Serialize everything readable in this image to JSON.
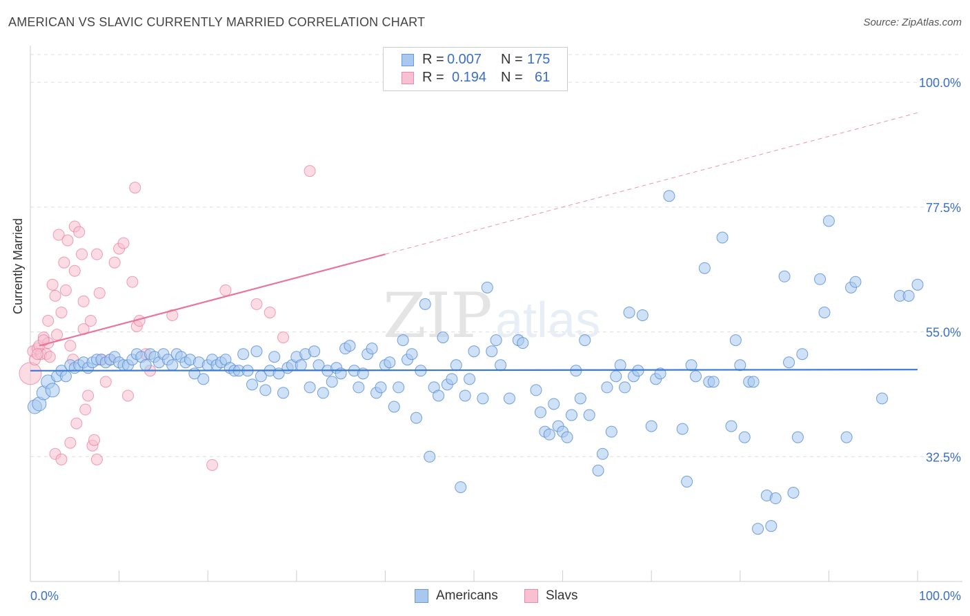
{
  "title": "AMERICAN VS SLAVIC CURRENTLY MARRIED CORRELATION CHART",
  "source": "Source: ZipAtlas.com",
  "watermark": {
    "zip": "ZIP",
    "atlas": "atlas"
  },
  "legend": {
    "rows": [
      {
        "r_label": "R =",
        "r_value": "0.007",
        "n_label": "N =",
        "n_value": "175",
        "color": "#a8c8f0",
        "border": "#6a9ad6"
      },
      {
        "r_label": "R =",
        "r_value": "0.194",
        "n_label": "N =",
        "n_value": "61",
        "color": "#f8c0d0",
        "border": "#e88aa8"
      }
    ]
  },
  "bottom_legend": [
    {
      "label": "Americans",
      "color": "#a8c8f0",
      "border": "#6a9ad6"
    },
    {
      "label": "Slavs",
      "color": "#f8c0d0",
      "border": "#e88aa8"
    }
  ],
  "chart_data": {
    "type": "scatter",
    "title": "AMERICAN VS SLAVIC CURRENTLY MARRIED CORRELATION CHART",
    "xlabel": "",
    "ylabel": "Currently Married",
    "xlim": [
      0,
      100
    ],
    "ylim": [
      10,
      105
    ],
    "x_tick_labels": [
      "0.0%",
      "100.0%"
    ],
    "y_tick_labels": [
      {
        "value": 100.0,
        "label": "100.0%"
      },
      {
        "value": 77.5,
        "label": "77.5%"
      },
      {
        "value": 55.0,
        "label": "55.0%"
      },
      {
        "value": 32.5,
        "label": "32.5%"
      }
    ],
    "colors": {
      "americans": "#5b8fd6",
      "americans_fill": "#a8c8f0",
      "slavs": "#e8769c",
      "slavs_fill": "#f8c0d0",
      "axis_label": "#3a6fc4"
    },
    "trendlines": [
      {
        "series": "Americans",
        "x": [
          0,
          100
        ],
        "y": [
          48.0,
          48.2
        ],
        "style": "solid"
      },
      {
        "series": "Slavs",
        "x": [
          1,
          40
        ],
        "y": [
          52.5,
          69.0
        ],
        "style": "solid"
      },
      {
        "series": "Slavs",
        "x": [
          40,
          100
        ],
        "y": [
          69.0,
          94.5
        ],
        "style": "dashed"
      }
    ],
    "series": [
      {
        "name": "Americans",
        "points": [
          [
            0.5,
            41.5
          ],
          [
            1,
            42
          ],
          [
            1.5,
            44
          ],
          [
            2,
            46
          ],
          [
            2.5,
            44.5
          ],
          [
            3,
            47
          ],
          [
            3.5,
            48
          ],
          [
            4,
            47
          ],
          [
            4.5,
            49
          ],
          [
            5,
            48.5
          ],
          [
            5.5,
            49
          ],
          [
            6,
            49.5
          ],
          [
            6.5,
            48.5
          ],
          [
            7,
            49.5
          ],
          [
            7.5,
            50
          ],
          [
            8,
            50
          ],
          [
            8.5,
            49.5
          ],
          [
            9,
            50
          ],
          [
            9.5,
            50.5
          ],
          [
            10,
            49.5
          ],
          [
            10.5,
            49
          ],
          [
            11,
            49
          ],
          [
            11.5,
            50
          ],
          [
            12,
            51
          ],
          [
            12.5,
            50.5
          ],
          [
            13,
            49
          ],
          [
            13.5,
            51
          ],
          [
            14,
            50.5
          ],
          [
            14.5,
            49.5
          ],
          [
            15,
            51
          ],
          [
            15.5,
            50
          ],
          [
            16,
            49
          ],
          [
            16.5,
            51
          ],
          [
            17,
            50.5
          ],
          [
            17.5,
            49.5
          ],
          [
            18,
            50
          ],
          [
            18.5,
            47.5
          ],
          [
            19,
            49.5
          ],
          [
            19.5,
            46.5
          ],
          [
            20,
            49
          ],
          [
            20.5,
            50
          ],
          [
            21,
            49
          ],
          [
            21.5,
            49.5
          ],
          [
            22,
            50
          ],
          [
            22.5,
            48.5
          ],
          [
            23,
            48
          ],
          [
            23.5,
            48
          ],
          [
            24,
            51
          ],
          [
            24.5,
            48
          ],
          [
            25,
            45.5
          ],
          [
            25.5,
            51.5
          ],
          [
            26,
            47
          ],
          [
            26.5,
            44.5
          ],
          [
            27,
            48
          ],
          [
            27.5,
            50.5
          ],
          [
            28,
            47.5
          ],
          [
            28.5,
            44
          ],
          [
            29,
            48.5
          ],
          [
            29.5,
            49
          ],
          [
            30,
            50.5
          ],
          [
            30.5,
            49
          ],
          [
            31,
            51
          ],
          [
            31.5,
            45
          ],
          [
            32,
            51.5
          ],
          [
            32.5,
            49
          ],
          [
            33,
            44
          ],
          [
            33.5,
            48
          ],
          [
            34,
            46
          ],
          [
            34.5,
            48.5
          ],
          [
            35,
            47.5
          ],
          [
            35.5,
            52
          ],
          [
            36,
            52.5
          ],
          [
            36.5,
            48
          ],
          [
            37,
            45
          ],
          [
            37.5,
            47.5
          ],
          [
            38,
            51
          ],
          [
            38.5,
            52
          ],
          [
            39,
            44
          ],
          [
            39.5,
            45
          ],
          [
            40,
            49
          ],
          [
            40.5,
            49.5
          ],
          [
            41,
            41.5
          ],
          [
            41.5,
            45
          ],
          [
            42,
            53.5
          ],
          [
            42.5,
            50
          ],
          [
            43,
            51
          ],
          [
            43.5,
            39.5
          ],
          [
            44,
            48
          ],
          [
            44.5,
            60
          ],
          [
            45,
            32.5
          ],
          [
            45.5,
            45
          ],
          [
            46,
            43.5
          ],
          [
            46.5,
            54
          ],
          [
            47,
            45.5
          ],
          [
            47.5,
            46.5
          ],
          [
            48,
            49
          ],
          [
            48.5,
            27
          ],
          [
            49,
            43.5
          ],
          [
            49.5,
            46.5
          ],
          [
            50,
            51.5
          ],
          [
            51,
            43
          ],
          [
            51.5,
            63
          ],
          [
            52,
            51.5
          ],
          [
            52.5,
            53.5
          ],
          [
            53,
            49
          ],
          [
            54,
            43
          ],
          [
            55,
            53.5
          ],
          [
            55.5,
            53
          ],
          [
            57,
            44.5
          ],
          [
            57.5,
            40.5
          ],
          [
            58,
            37
          ],
          [
            58.5,
            36.5
          ],
          [
            59,
            42
          ],
          [
            59.5,
            38
          ],
          [
            60,
            37
          ],
          [
            60.5,
            36
          ],
          [
            61,
            40
          ],
          [
            61.5,
            48
          ],
          [
            62,
            43
          ],
          [
            62.5,
            53.5
          ],
          [
            63,
            40
          ],
          [
            64,
            30
          ],
          [
            64.5,
            33
          ],
          [
            65,
            45
          ],
          [
            65.5,
            37
          ],
          [
            66,
            47
          ],
          [
            66.5,
            49
          ],
          [
            67,
            45
          ],
          [
            67.5,
            58.5
          ],
          [
            68,
            47
          ],
          [
            68.5,
            48
          ],
          [
            69,
            58
          ],
          [
            70,
            38
          ],
          [
            70.5,
            46.5
          ],
          [
            71,
            47.5
          ],
          [
            72,
            79.5
          ],
          [
            73.5,
            37.5
          ],
          [
            74,
            28
          ],
          [
            74.5,
            49
          ],
          [
            75,
            47
          ],
          [
            76,
            66.5
          ],
          [
            76.5,
            46
          ],
          [
            77,
            46
          ],
          [
            78,
            72
          ],
          [
            79,
            38
          ],
          [
            79.5,
            53.5
          ],
          [
            80,
            49
          ],
          [
            80.5,
            36
          ],
          [
            81,
            46
          ],
          [
            81.5,
            46
          ],
          [
            82,
            19.5
          ],
          [
            83,
            25.5
          ],
          [
            83.5,
            20
          ],
          [
            84,
            25
          ],
          [
            85,
            65
          ],
          [
            85.5,
            49.5
          ],
          [
            86,
            26
          ],
          [
            86.5,
            36
          ],
          [
            87,
            51
          ],
          [
            89,
            64.5
          ],
          [
            89.5,
            58.5
          ],
          [
            90,
            75
          ],
          [
            92,
            36
          ],
          [
            92.5,
            63
          ],
          [
            93,
            64
          ],
          [
            96,
            43
          ],
          [
            98,
            61.5
          ],
          [
            99,
            61.5
          ],
          [
            100,
            63.5
          ]
        ]
      },
      {
        "name": "Slavs",
        "points": [
          [
            0,
            47.5
          ],
          [
            0.3,
            51.5
          ],
          [
            0.5,
            50
          ],
          [
            0.8,
            52
          ],
          [
            1,
            52.5
          ],
          [
            1.2,
            51
          ],
          [
            1.5,
            54
          ],
          [
            1.8,
            51
          ],
          [
            2,
            53
          ],
          [
            2.2,
            50.5
          ],
          [
            2.5,
            63.5
          ],
          [
            2.8,
            61.5
          ],
          [
            3,
            54.5
          ],
          [
            3.2,
            72.5
          ],
          [
            3.5,
            58.5
          ],
          [
            3.8,
            67.5
          ],
          [
            4,
            62.5
          ],
          [
            4.2,
            71.5
          ],
          [
            4.5,
            52.5
          ],
          [
            4.8,
            50
          ],
          [
            5,
            74
          ],
          [
            5.2,
            38.5
          ],
          [
            5.5,
            73
          ],
          [
            5.8,
            69
          ],
          [
            6,
            55.5
          ],
          [
            6.2,
            41
          ],
          [
            6.5,
            43.5
          ],
          [
            6.8,
            57
          ],
          [
            7,
            34.5
          ],
          [
            7.2,
            35.5
          ],
          [
            7.5,
            69
          ],
          [
            7.8,
            62
          ],
          [
            8,
            50
          ],
          [
            8.5,
            46
          ],
          [
            9,
            50
          ],
          [
            9.5,
            67.5
          ],
          [
            10,
            70
          ],
          [
            10.5,
            71
          ],
          [
            11,
            43.5
          ],
          [
            11.5,
            64
          ],
          [
            11.8,
            81
          ],
          [
            12,
            56
          ],
          [
            12.3,
            57
          ],
          [
            13,
            51
          ],
          [
            13.5,
            48
          ],
          [
            16,
            58
          ],
          [
            20.5,
            31
          ],
          [
            22,
            62.5
          ],
          [
            25.5,
            60
          ],
          [
            27,
            58.5
          ],
          [
            28.5,
            54
          ],
          [
            31.5,
            84
          ],
          [
            2.8,
            33
          ],
          [
            3.5,
            32
          ],
          [
            4.5,
            35
          ],
          [
            2,
            57
          ],
          [
            1.5,
            53.5
          ],
          [
            0.8,
            51
          ],
          [
            5,
            66
          ],
          [
            6,
            60.5
          ],
          [
            7.5,
            32
          ]
        ]
      }
    ]
  }
}
